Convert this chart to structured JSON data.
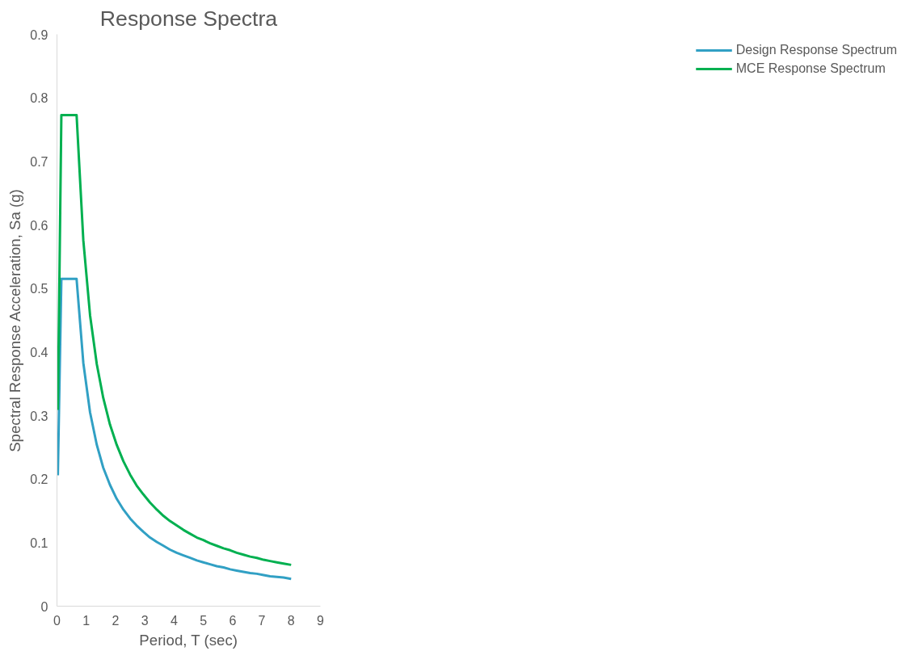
{
  "chart_data": {
    "type": "line",
    "title": "Response Spectra",
    "xlabel": "Period, T (sec)",
    "ylabel": "Spectral Response Acceleration, Sa (g)",
    "x": [
      0.03,
      0.15,
      0.67,
      0.9,
      1.13,
      1.36,
      1.58,
      1.81,
      2.04,
      2.27,
      2.5,
      2.72,
      2.95,
      3.18,
      3.41,
      3.64,
      3.86,
      4.09,
      4.32,
      4.55,
      4.78,
      5.0,
      5.23,
      5.46,
      5.69,
      5.92,
      6.14,
      6.37,
      6.6,
      6.83,
      7.06,
      7.28,
      7.51,
      7.74,
      8.0
    ],
    "series": [
      {
        "name": "Design Response Spectrum",
        "color": "#31a0c4",
        "values": [
          0.206,
          0.515,
          0.515,
          0.383,
          0.305,
          0.254,
          0.218,
          0.191,
          0.169,
          0.152,
          0.138,
          0.127,
          0.117,
          0.108,
          0.101,
          0.095,
          0.089,
          0.084,
          0.08,
          0.076,
          0.072,
          0.069,
          0.066,
          0.063,
          0.061,
          0.058,
          0.056,
          0.054,
          0.052,
          0.051,
          0.049,
          0.047,
          0.046,
          0.045,
          0.043
        ]
      },
      {
        "name": "MCE Response Spectrum",
        "color": "#00b050",
        "values": [
          0.309,
          0.773,
          0.773,
          0.576,
          0.458,
          0.381,
          0.328,
          0.286,
          0.254,
          0.228,
          0.207,
          0.19,
          0.176,
          0.163,
          0.152,
          0.142,
          0.134,
          0.127,
          0.12,
          0.114,
          0.108,
          0.104,
          0.099,
          0.095,
          0.091,
          0.088,
          0.084,
          0.081,
          0.078,
          0.076,
          0.073,
          0.071,
          0.069,
          0.067,
          0.065
        ]
      }
    ],
    "xlim": [
      0,
      9
    ],
    "xticks": [
      0,
      1,
      2,
      3,
      4,
      5,
      6,
      7,
      8,
      9
    ],
    "ylim": [
      0,
      0.9
    ],
    "yticks": [
      0,
      0.1,
      0.2,
      0.3,
      0.4,
      0.5,
      0.6,
      0.7,
      0.8,
      0.9
    ],
    "grid": false,
    "legend": "right",
    "marker": "none",
    "line_style": "solid"
  }
}
